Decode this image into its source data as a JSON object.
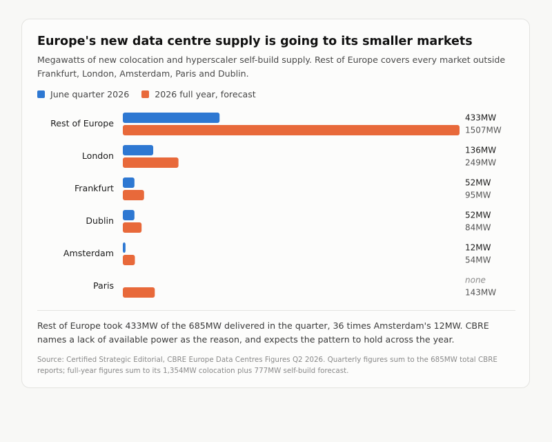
{
  "header": {
    "title": "Europe's new data centre supply is going to its smaller markets",
    "subtitle": "Megawatts of new colocation and hyperscaler self-build supply. Rest of Europe covers every market outside Frankfurt, London, Amsterdam, Paris and Dublin."
  },
  "legend": {
    "series1": "June quarter 2026",
    "series2": "2026 full year, forecast"
  },
  "colors": {
    "series1": "#2e78d2",
    "series2": "#e8693a"
  },
  "chart_data": {
    "type": "bar",
    "orientation": "horizontal",
    "categories": [
      "Rest of Europe",
      "London",
      "Frankfurt",
      "Dublin",
      "Amsterdam",
      "Paris"
    ],
    "series": [
      {
        "name": "June quarter 2026",
        "values": [
          433,
          136,
          52,
          52,
          12,
          null
        ],
        "labels": [
          "433MW",
          "136MW",
          "52MW",
          "52MW",
          "12MW",
          "none"
        ]
      },
      {
        "name": "2026 full year, forecast",
        "values": [
          1507,
          249,
          95,
          84,
          54,
          143
        ],
        "labels": [
          "1507MW",
          "249MW",
          "95MW",
          "84MW",
          "54MW",
          "143MW"
        ]
      }
    ],
    "xlim": [
      0,
      1507
    ],
    "grid": false,
    "legend_position": "top-left"
  },
  "footer": {
    "note": "Rest of Europe took 433MW of the 685MW delivered in the quarter, 36 times Amsterdam's 12MW. CBRE names a lack of available power as the reason, and expects the pattern to hold across the year.",
    "source": "Source: Certified Strategic Editorial, CBRE Europe Data Centres Figures Q2 2026. Quarterly figures sum to the 685MW total CBRE reports; full-year figures sum to its 1,354MW colocation plus 777MW self-build forecast."
  }
}
